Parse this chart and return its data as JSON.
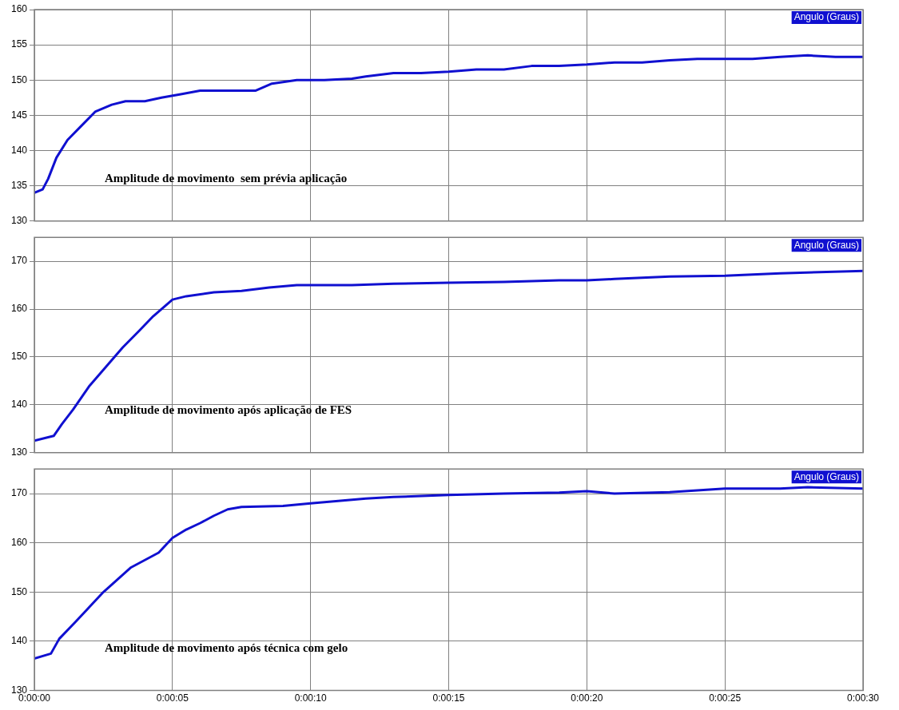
{
  "chart_data": [
    {
      "type": "line",
      "annotations": [
        "Amplitude de movimento  sem prévia aplicação"
      ],
      "legend": "top right",
      "grid": true,
      "tick_labels": "y",
      "marker": "none",
      "line_style": "solid",
      "xlim": [
        0,
        30
      ],
      "xticks": [
        {
          "value": 0,
          "label": null
        },
        {
          "value": 5,
          "label": null
        },
        {
          "value": 10,
          "label": null
        },
        {
          "value": 15,
          "label": null
        },
        {
          "value": 20,
          "label": null
        },
        {
          "value": 25,
          "label": null
        },
        {
          "value": 30,
          "label": null
        }
      ],
      "ylim": [
        130,
        160
      ],
      "yticks": [
        130,
        135,
        140,
        145,
        150,
        155,
        160
      ],
      "series": [
        {
          "name": "Angulo (Graus)",
          "color": "#1010d0",
          "x": [
            0,
            0.3,
            0.5,
            0.8,
            1.2,
            1.7,
            2.2,
            2.8,
            3.3,
            4,
            4.6,
            5.3,
            6,
            7,
            8,
            8.6,
            9.5,
            10.5,
            11.5,
            12,
            13,
            14,
            15,
            16,
            17,
            18,
            19,
            20,
            21,
            22,
            23,
            24,
            25,
            26,
            27,
            28,
            29,
            30
          ],
          "values": [
            134,
            134.5,
            136,
            139,
            141.5,
            143.5,
            145.5,
            146.5,
            147,
            147,
            147.5,
            148,
            148.5,
            148.5,
            148.5,
            149.5,
            150,
            150,
            150.2,
            150.5,
            151,
            151,
            151.2,
            151.5,
            151.5,
            152,
            152,
            152.2,
            152.5,
            152.5,
            152.8,
            153,
            153,
            153,
            153.3,
            153.5,
            153.3,
            153.3
          ]
        }
      ]
    },
    {
      "type": "line",
      "annotations": [
        "Amplitude de movimento após aplicação de FES"
      ],
      "legend": "top right",
      "grid": true,
      "tick_labels": "y",
      "marker": "none",
      "line_style": "solid",
      "xlim": [
        0,
        30
      ],
      "xticks": [
        {
          "value": 0,
          "label": null
        },
        {
          "value": 5,
          "label": null
        },
        {
          "value": 10,
          "label": null
        },
        {
          "value": 15,
          "label": null
        },
        {
          "value": 20,
          "label": null
        },
        {
          "value": 25,
          "label": null
        },
        {
          "value": 30,
          "label": null
        }
      ],
      "ylim": [
        130,
        175
      ],
      "yticks": [
        130,
        140,
        150,
        160,
        170
      ],
      "series": [
        {
          "name": "Angulo (Graus)",
          "color": "#1010d0",
          "x": [
            0,
            0.7,
            1,
            1.4,
            2,
            2.6,
            3.2,
            3.8,
            4.3,
            5,
            5.5,
            6.5,
            7.5,
            8.5,
            9.5,
            10.5,
            11.5,
            13,
            15,
            17,
            19,
            20,
            21,
            23,
            25,
            27,
            30
          ],
          "values": [
            132.5,
            133.5,
            136,
            139,
            144,
            148,
            152,
            155.5,
            158.5,
            162,
            162.7,
            163.5,
            163.8,
            164.5,
            165,
            165,
            165,
            165.3,
            165.5,
            165.7,
            166,
            166,
            166.3,
            166.8,
            167,
            167.5,
            168
          ]
        }
      ]
    },
    {
      "type": "line",
      "annotations": [
        "Amplitude de movimento após técnica com gelo"
      ],
      "legend": "top right",
      "grid": true,
      "marker": "none",
      "line_style": "solid",
      "xlim": [
        0,
        30
      ],
      "xticks": [
        {
          "value": 0,
          "label": "0:00:00"
        },
        {
          "value": 5,
          "label": "0:00:05"
        },
        {
          "value": 10,
          "label": "0:00:10"
        },
        {
          "value": 15,
          "label": "0:00:15"
        },
        {
          "value": 20,
          "label": "0:00:20"
        },
        {
          "value": 25,
          "label": "0:00:25"
        },
        {
          "value": 30,
          "label": "0:00:30"
        }
      ],
      "ylim": [
        130,
        175
      ],
      "yticks": [
        130,
        140,
        150,
        160,
        170
      ],
      "series": [
        {
          "name": "Angulo (Graus)",
          "color": "#1010d0",
          "x": [
            0,
            0.6,
            0.9,
            1.5,
            2,
            2.5,
            3,
            3.5,
            4,
            4.5,
            5,
            5.5,
            6,
            6.5,
            7,
            7.5,
            9,
            10,
            11,
            12,
            13,
            15,
            17,
            19,
            20,
            21,
            23,
            25,
            27,
            28,
            30
          ],
          "values": [
            136.5,
            137.5,
            140.5,
            144,
            147,
            150,
            152.5,
            155,
            156.5,
            158,
            161,
            162.7,
            164,
            165.5,
            166.8,
            167.3,
            167.5,
            168,
            168.5,
            169,
            169.3,
            169.7,
            170,
            170.2,
            170.5,
            170,
            170.3,
            171,
            171,
            171.3,
            171
          ]
        }
      ]
    }
  ]
}
